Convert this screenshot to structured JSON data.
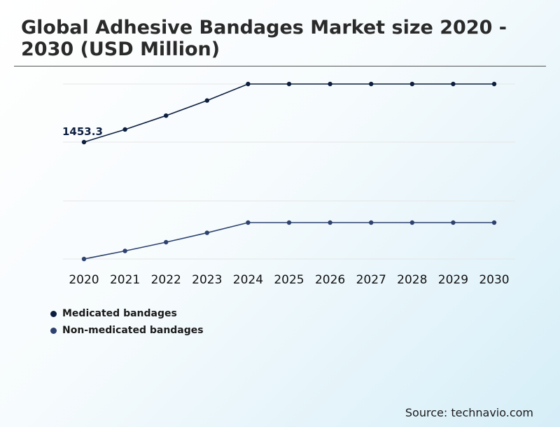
{
  "title": "Global Adhesive Bandages Market size 2020 - 2030 (USD Million)",
  "source": "Source: technavio.com",
  "colors": {
    "medicated": "#0d1f3f",
    "non_medicated": "#2e4270",
    "grid": "#e6e6e6"
  },
  "chart_data": {
    "type": "line",
    "title": "Global Adhesive Bandages Market size 2020 - 2030 (USD Million)",
    "categories": [
      "2020",
      "2021",
      "2022",
      "2023",
      "2024",
      "2025",
      "2026",
      "2027",
      "2028",
      "2029",
      "2030"
    ],
    "grid": true,
    "legend_position": "bottom-left",
    "series": [
      {
        "name": "Medicated bandages",
        "values": [
          1453.3,
          1581,
          1721,
          1874,
          2041,
          2041,
          2041,
          2041,
          2041,
          2041,
          2041
        ],
        "start_label": "1453.3"
      },
      {
        "name": "Non-medicated bandages",
        "values": [
          1033,
          1116,
          1206,
          1303,
          1408,
          1408,
          1408,
          1408,
          1408,
          1408,
          1408
        ]
      }
    ],
    "ylim": [
      1000,
      2100
    ]
  }
}
